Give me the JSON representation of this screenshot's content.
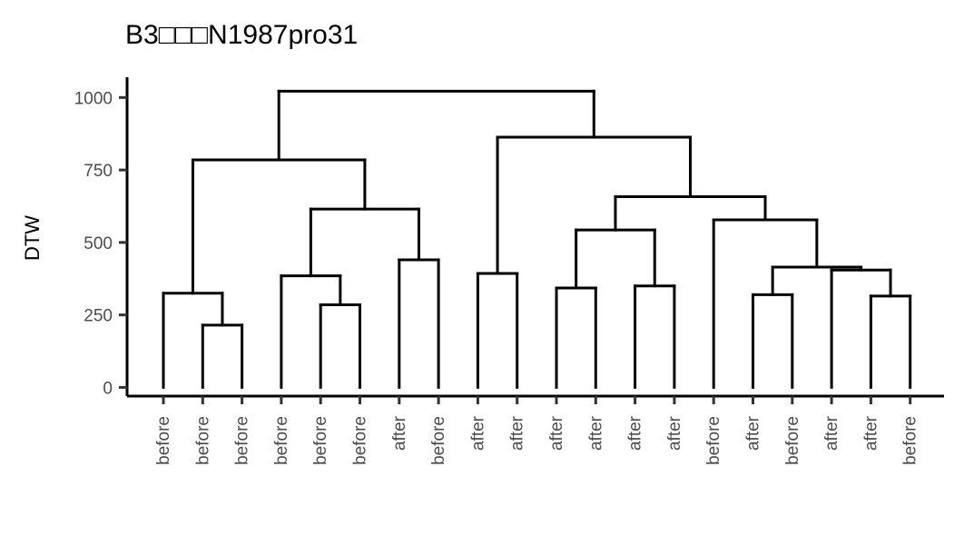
{
  "chart_data": {
    "type": "dendrogram",
    "title": "B3□□□N1987pro31",
    "xlabel": "",
    "ylabel": "DTW",
    "ylim": [
      -30,
      1070
    ],
    "yticks": [
      0,
      250,
      500,
      750,
      1000
    ],
    "grid": false,
    "leaves": [
      "before",
      "before",
      "before",
      "before",
      "before",
      "before",
      "after",
      "before",
      "after",
      "after",
      "after",
      "after",
      "after",
      "after",
      "before",
      "after",
      "before",
      "after",
      "after",
      "before"
    ],
    "merges": [
      {
        "id": "m1",
        "left": 2,
        "right": 3,
        "height": 215
      },
      {
        "id": "m2",
        "left": 1,
        "right": "m1",
        "height": 325
      },
      {
        "id": "m3",
        "left": 5,
        "right": 6,
        "height": 285
      },
      {
        "id": "m4",
        "left": 4,
        "right": "m3",
        "height": 385
      },
      {
        "id": "m5",
        "left": 7,
        "right": 8,
        "height": 440
      },
      {
        "id": "m6",
        "left": "m4",
        "right": "m5",
        "height": 615
      },
      {
        "id": "m7",
        "left": "m2",
        "right": "m6",
        "height": 785
      },
      {
        "id": "m8",
        "left": 9,
        "right": 10,
        "height": 393
      },
      {
        "id": "m9",
        "left": 11,
        "right": 12,
        "height": 343
      },
      {
        "id": "m10",
        "left": 13,
        "right": 14,
        "height": 350
      },
      {
        "id": "m11",
        "left": "m9",
        "right": "m10",
        "height": 543
      },
      {
        "id": "m12",
        "left": 16,
        "right": 17,
        "height": 320
      },
      {
        "id": "m13",
        "left": 19,
        "right": 20,
        "height": 315
      },
      {
        "id": "m14",
        "left": 18,
        "right": "m13",
        "height": 405
      },
      {
        "id": "m15",
        "left": "m12",
        "right": "m14",
        "height": 415
      },
      {
        "id": "m16",
        "left": 15,
        "right": "m15",
        "height": 578
      },
      {
        "id": "m17",
        "left": "m11",
        "right": "m16",
        "height": 658
      },
      {
        "id": "m18",
        "left": "m8",
        "right": "m17",
        "height": 863
      },
      {
        "id": "m19",
        "left": "m7",
        "right": "m18",
        "height": 1022
      }
    ]
  }
}
